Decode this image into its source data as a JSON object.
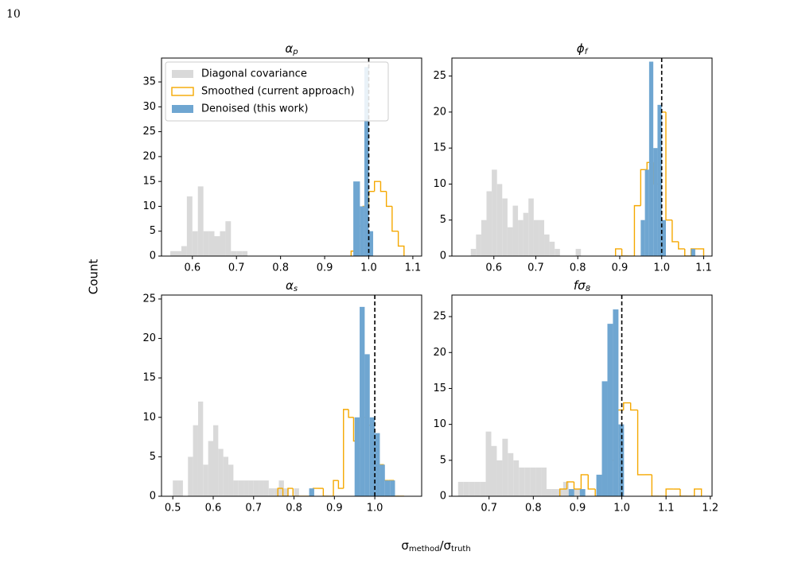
{
  "page_number": "10",
  "ylabel": "Count",
  "xlabel": [
    "σ",
    "method",
    "/σ",
    "truth"
  ],
  "legend": "upper left",
  "chart_data": [
    {
      "type": "histogram",
      "title": {
        "symbol": "α",
        "subscript": "p"
      },
      "xlim": [
        0.53,
        1.12
      ],
      "ylim": [
        0,
        39.8
      ],
      "xticks": [
        0.6,
        0.7,
        0.8,
        0.9,
        {
          "value": 1.0,
          "label": "1.0"
        },
        1.1
      ],
      "yticks": [
        0,
        5,
        10,
        15,
        20,
        25,
        30,
        35
      ],
      "vline": 1.0,
      "series": [
        {
          "name": "Diagonal covariance",
          "color": "#d9d9d9",
          "histtype": "bar",
          "bins": [
            0.55,
            0.5625,
            0.575,
            0.5875,
            0.6,
            0.6125,
            0.625,
            0.6375,
            0.65,
            0.6625,
            0.675,
            0.6875,
            0.7,
            0.7125,
            0.725
          ],
          "values": [
            1,
            1,
            2,
            12,
            5,
            14,
            5,
            5,
            4,
            5,
            7,
            1,
            1,
            1
          ]
        },
        {
          "name": "Smoothed (current approach)",
          "color": "#f5a800",
          "histtype": "step",
          "bins": [
            0.96,
            0.973,
            0.987,
            1.0,
            1.013,
            1.027,
            1.04,
            1.053,
            1.067,
            1.08
          ],
          "values": [
            1,
            6,
            10,
            13,
            15,
            13,
            10,
            5,
            2
          ]
        },
        {
          "name": "Denoised (this work)",
          "color": "#6fa6d1",
          "histtype": "bar",
          "bins": [
            0.965,
            0.98,
            0.99,
            1.0,
            1.01
          ],
          "values": [
            15,
            10,
            38,
            5
          ]
        }
      ]
    },
    {
      "type": "histogram",
      "title": {
        "symbol": "ϕ",
        "subscript": "f"
      },
      "xlim": [
        0.5,
        1.12
      ],
      "ylim": [
        0,
        27.5
      ],
      "xticks": [
        0.6,
        0.7,
        0.8,
        0.9,
        {
          "value": 1.0,
          "label": "1.0"
        },
        1.1
      ],
      "yticks": [
        0,
        5,
        10,
        15,
        20,
        25
      ],
      "vline": 1.0,
      "series": [
        {
          "color": "#d9d9d9",
          "histtype": "bar",
          "bins": [
            0.545,
            0.5575,
            0.57,
            0.5825,
            0.595,
            0.6075,
            0.62,
            0.6325,
            0.645,
            0.6575,
            0.67,
            0.6825,
            0.695,
            0.7075,
            0.72,
            0.7325,
            0.745,
            0.7575,
            0.77,
            0.7825,
            0.795,
            0.8075,
            0.82
          ],
          "values": [
            1,
            3,
            5,
            9,
            12,
            10,
            8,
            4,
            7,
            5,
            6,
            8,
            5,
            5,
            3,
            2,
            1,
            0,
            0,
            0,
            1,
            0
          ]
        },
        {
          "color": "#f5a800",
          "histtype": "step",
          "bins": [
            0.89,
            0.905,
            0.92,
            0.935,
            0.95,
            0.965,
            0.98,
            0.995,
            1.01,
            1.025,
            1.04,
            1.055,
            1.07,
            1.085,
            1.1
          ],
          "values": [
            1,
            0,
            0,
            7,
            12,
            13,
            10,
            20,
            5,
            2,
            1,
            0,
            1,
            1
          ]
        },
        {
          "color": "#6fa6d1",
          "histtype": "bar",
          "bins": [
            0.95,
            0.96,
            0.97,
            0.98,
            0.99,
            1.0,
            1.01,
            1.02,
            1.03,
            1.04,
            1.05,
            1.06,
            1.07,
            1.08
          ],
          "values": [
            5,
            12,
            27,
            15,
            21,
            5,
            0,
            0,
            0,
            0,
            0,
            0,
            1
          ]
        }
      ]
    },
    {
      "type": "histogram",
      "title": {
        "symbol": "α",
        "subscript": "s"
      },
      "xlim": [
        0.472,
        1.116
      ],
      "ylim": [
        0,
        25.5
      ],
      "xticks": [
        0.5,
        0.6,
        0.7,
        0.8,
        0.9,
        {
          "value": 1.0,
          "label": "1.0"
        }
      ],
      "yticks": [
        0,
        5,
        10,
        15,
        20,
        25
      ],
      "vline": 1.0,
      "series": [
        {
          "color": "#d9d9d9",
          "histtype": "bar",
          "bins": [
            0.5,
            0.5125,
            0.525,
            0.5375,
            0.55,
            0.5625,
            0.575,
            0.5875,
            0.6,
            0.6125,
            0.625,
            0.6375,
            0.65,
            0.6625,
            0.675,
            0.6875,
            0.7,
            0.7125,
            0.725,
            0.7375,
            0.75,
            0.7625,
            0.775,
            0.7875,
            0.8,
            0.8125,
            0.825,
            0.8375,
            0.85
          ],
          "values": [
            2,
            2,
            0,
            5,
            9,
            12,
            4,
            7,
            9,
            6,
            5,
            4,
            2,
            2,
            2,
            2,
            2,
            2,
            2,
            1,
            1,
            2,
            1,
            0,
            1,
            0,
            0,
            0
          ]
        },
        {
          "color": "#f5a800",
          "histtype": "step",
          "bins": [
            0.76,
            0.7725,
            0.785,
            0.7975,
            0.81,
            0.8225,
            0.835,
            0.8475,
            0.86,
            0.8725,
            0.885,
            0.8975,
            0.91,
            0.9225,
            0.935,
            0.9475,
            0.96,
            0.9725,
            0.985,
            0.9975,
            1.01,
            1.0225,
            1.035,
            1.0475,
            1.06,
            1.0725
          ],
          "values": [
            1,
            0,
            1,
            0,
            0,
            0,
            0,
            1,
            1,
            0,
            0,
            2,
            1,
            11,
            10,
            7,
            6,
            10,
            9,
            6,
            4,
            2,
            2,
            0,
            0
          ]
        },
        {
          "color": "#6fa6d1",
          "histtype": "bar",
          "bins": [
            0.8375,
            0.85,
            0.8625,
            0.875,
            0.8875,
            0.9,
            0.9125,
            0.925,
            0.9375,
            0.95,
            0.9625,
            0.975,
            0.9875,
            1.0,
            1.0125,
            1.025,
            1.0375,
            1.05,
            1.0625
          ],
          "values": [
            1,
            0,
            0,
            0,
            0,
            0,
            0,
            0,
            0,
            10,
            24,
            18,
            10,
            8,
            4,
            2,
            2,
            0
          ]
        }
      ]
    },
    {
      "type": "histogram",
      "title": {
        "symbol": "fσ",
        "subscript": "8"
      },
      "xlim": [
        0.616,
        1.204
      ],
      "ylim": [
        0,
        28
      ],
      "xticks": [
        0.7,
        0.8,
        0.9,
        {
          "value": 1.0,
          "label": "1.0"
        },
        1.1,
        1.2
      ],
      "yticks": [
        0,
        5,
        10,
        15,
        20,
        25
      ],
      "vline": 1.0,
      "series": [
        {
          "color": "#d9d9d9",
          "histtype": "bar",
          "bins": [
            0.63,
            0.6425,
            0.655,
            0.6675,
            0.68,
            0.6925,
            0.705,
            0.7175,
            0.73,
            0.7425,
            0.755,
            0.7675,
            0.78,
            0.7925,
            0.805,
            0.8175,
            0.83,
            0.8425,
            0.855,
            0.8675,
            0.88,
            0.8925,
            0.905,
            0.9175,
            0.93
          ],
          "values": [
            2,
            2,
            2,
            2,
            2,
            9,
            7,
            5,
            8,
            6,
            5,
            4,
            4,
            4,
            4,
            4,
            1,
            1,
            1,
            2,
            1,
            1,
            0,
            0
          ]
        },
        {
          "color": "#f5a800",
          "histtype": "step",
          "bins": [
            0.86,
            0.876,
            0.892,
            0.908,
            0.924,
            0.94,
            0.956,
            0.972,
            0.988,
            1.004,
            1.02,
            1.036,
            1.052,
            1.068,
            1.084,
            1.1,
            1.116,
            1.132,
            1.148,
            1.164,
            1.18
          ],
          "values": [
            1,
            2,
            1,
            3,
            1,
            0,
            0,
            5,
            12,
            13,
            12,
            3,
            3,
            0,
            0,
            1,
            1,
            0,
            0,
            1
          ]
        },
        {
          "color": "#6fa6d1",
          "histtype": "bar",
          "bins": [
            0.88,
            0.8925,
            0.905,
            0.9175,
            0.93,
            0.9425,
            0.955,
            0.9675,
            0.98,
            0.9925,
            1.005,
            1.0175,
            1.03
          ],
          "values": [
            1,
            0,
            1,
            0,
            0,
            3,
            16,
            24,
            26,
            10,
            0,
            0
          ]
        }
      ]
    }
  ]
}
